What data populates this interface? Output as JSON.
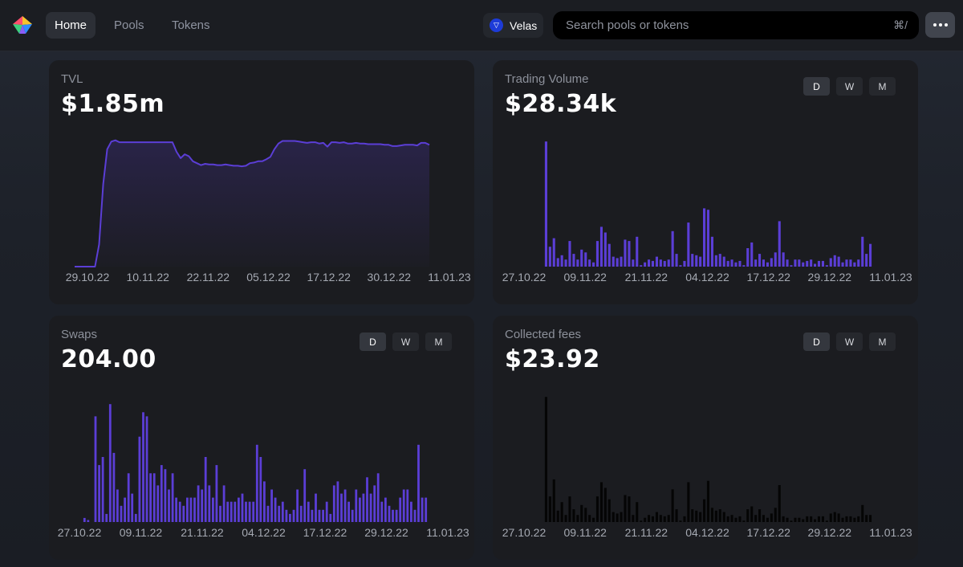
{
  "nav": {
    "items": [
      {
        "label": "Home",
        "active": true
      },
      {
        "label": "Pools",
        "active": false
      },
      {
        "label": "Tokens",
        "active": false
      }
    ],
    "network": "Velas",
    "search": {
      "placeholder": "Search pools or tokens",
      "shortcut": "⌘/"
    }
  },
  "timeframes": [
    "D",
    "W",
    "M"
  ],
  "colors": {
    "accent": "#5b3ed6",
    "fees": "#050505"
  },
  "cards": {
    "tvl": {
      "title": "TVL",
      "value": "$1.85m"
    },
    "volume": {
      "title": "Trading Volume",
      "value": "$28.34k"
    },
    "swaps": {
      "title": "Swaps",
      "value": "204.00"
    },
    "fees": {
      "title": "Collected fees",
      "value": "$23.92"
    }
  },
  "chart_data": [
    {
      "id": "tvl",
      "type": "area",
      "x_ticks": [
        "29.10.22",
        "10.11.22",
        "22.11.22",
        "05.12.22",
        "17.12.22",
        "30.12.22",
        "11.01.23"
      ],
      "values": [
        0.0,
        0.0,
        0.0,
        0.0,
        0.0,
        0.0,
        0.35,
        1.3,
        1.85,
        1.97,
        1.99,
        1.96,
        1.96,
        1.96,
        1.96,
        1.96,
        1.96,
        1.96,
        1.96,
        1.96,
        1.96,
        1.96,
        1.96,
        1.96,
        1.96,
        1.81,
        1.71,
        1.77,
        1.74,
        1.66,
        1.63,
        1.6,
        1.62,
        1.61,
        1.61,
        1.6,
        1.6,
        1.61,
        1.6,
        1.59,
        1.59,
        1.58,
        1.59,
        1.63,
        1.64,
        1.66,
        1.66,
        1.69,
        1.73,
        1.85,
        1.94,
        1.98,
        1.98,
        1.98,
        1.98,
        1.97,
        1.96,
        1.95,
        1.96,
        1.96,
        1.94,
        1.95,
        1.89,
        1.96,
        1.96,
        1.95,
        1.96,
        1.94,
        1.94,
        1.95,
        1.94,
        1.94,
        1.93,
        1.93,
        1.93,
        1.93,
        1.92,
        1.92,
        1.9,
        1.9,
        1.91,
        1.92,
        1.92,
        1.92,
        1.91,
        1.95,
        1.95,
        1.92
      ],
      "ylim": [
        0,
        2.05
      ],
      "color": "#5b3ed6"
    },
    {
      "id": "volume",
      "type": "bar",
      "x_ticks": [
        "27.10.22",
        "09.11.22",
        "21.11.22",
        "04.12.22",
        "17.12.22",
        "29.12.22",
        "11.01.23"
      ],
      "values": [
        0,
        8.8,
        1.4,
        2.0,
        0.6,
        0.8,
        0.5,
        1.8,
        0.9,
        0.5,
        1.2,
        1.0,
        0.5,
        0.3,
        1.8,
        2.8,
        2.4,
        1.6,
        0.7,
        0.6,
        0.7,
        1.9,
        1.8,
        0.5,
        2.1,
        0.1,
        0.3,
        0.5,
        0.4,
        0.7,
        0.5,
        0.4,
        0.5,
        2.5,
        0.9,
        0.1,
        0.4,
        3.1,
        0.9,
        0.8,
        0.7,
        4.1,
        4.0,
        2.1,
        0.8,
        0.9,
        0.7,
        0.4,
        0.5,
        0.3,
        0.4,
        0.1,
        1.3,
        1.7,
        0.5,
        0.9,
        0.5,
        0.3,
        0.6,
        1.0,
        3.2,
        1.0,
        0.5,
        0.1,
        0.5,
        0.5,
        0.3,
        0.4,
        0.5,
        0.2,
        0.4,
        0.4,
        0.1,
        0.6,
        0.8,
        0.7,
        0.3,
        0.5,
        0.5,
        0.3,
        0.5,
        2.1,
        0.9,
        1.6
      ],
      "ylim": [
        0,
        10
      ],
      "color": "#5b3ed6"
    },
    {
      "id": "swaps",
      "type": "bar",
      "x_ticks": [
        "27.10.22",
        "09.11.22",
        "21.11.22",
        "04.12.22",
        "17.12.22",
        "29.12.22",
        "11.01.23"
      ],
      "values": [
        0.1,
        0.05,
        0,
        2.6,
        1.4,
        1.6,
        0.2,
        2.9,
        1.7,
        0.8,
        0.4,
        0.6,
        1.2,
        0.7,
        0.2,
        2.1,
        2.7,
        2.6,
        1.2,
        1.2,
        0.9,
        1.4,
        1.3,
        0.8,
        1.2,
        0.6,
        0.5,
        0.4,
        0.6,
        0.6,
        0.6,
        0.9,
        0.8,
        1.6,
        0.9,
        0.6,
        1.4,
        0.4,
        0.9,
        0.5,
        0.5,
        0.5,
        0.6,
        0.7,
        0.5,
        0.5,
        0.5,
        1.9,
        1.6,
        1.0,
        0.4,
        0.8,
        0.6,
        0.4,
        0.5,
        0.3,
        0.2,
        0.3,
        0.8,
        0.4,
        1.3,
        0.5,
        0.3,
        0.7,
        0.3,
        0.3,
        0.5,
        0.2,
        0.9,
        1.0,
        0.7,
        0.8,
        0.5,
        0.3,
        0.8,
        0.6,
        0.7,
        1.1,
        0.7,
        0.9,
        1.2,
        0.5,
        0.6,
        0.4,
        0.3,
        0.3,
        0.6,
        0.8,
        0.8,
        0.5,
        0.3,
        1.9,
        0.6,
        0.6
      ],
      "ylim": [
        0,
        3.2
      ],
      "color": "#5b3ed6"
    },
    {
      "id": "fees",
      "type": "bar",
      "x_ticks": [
        "27.10.22",
        "09.11.22",
        "21.11.22",
        "04.12.22",
        "17.12.22",
        "29.12.22",
        "11.01.23"
      ],
      "values": [
        0,
        8.8,
        1.8,
        3.0,
        0.8,
        1.4,
        0.5,
        1.8,
        0.9,
        0.5,
        1.2,
        1.0,
        0.5,
        0.3,
        1.8,
        2.8,
        2.4,
        1.6,
        0.7,
        0.6,
        0.7,
        1.9,
        1.8,
        0.5,
        1.4,
        0.1,
        0.3,
        0.5,
        0.4,
        0.7,
        0.5,
        0.4,
        0.5,
        2.3,
        0.9,
        0.1,
        0.4,
        2.8,
        0.9,
        0.8,
        0.7,
        1.6,
        2.9,
        1.0,
        0.8,
        0.9,
        0.7,
        0.4,
        0.5,
        0.3,
        0.4,
        0.1,
        0.9,
        1.1,
        0.5,
        0.9,
        0.5,
        0.3,
        0.6,
        1.0,
        2.6,
        0.4,
        0.3,
        0.1,
        0.3,
        0.3,
        0.2,
        0.4,
        0.4,
        0.2,
        0.4,
        0.4,
        0.1,
        0.6,
        0.7,
        0.6,
        0.3,
        0.4,
        0.4,
        0.3,
        0.4,
        1.2,
        0.5,
        0.5
      ],
      "ylim": [
        0,
        10
      ],
      "color": "#050505"
    }
  ]
}
